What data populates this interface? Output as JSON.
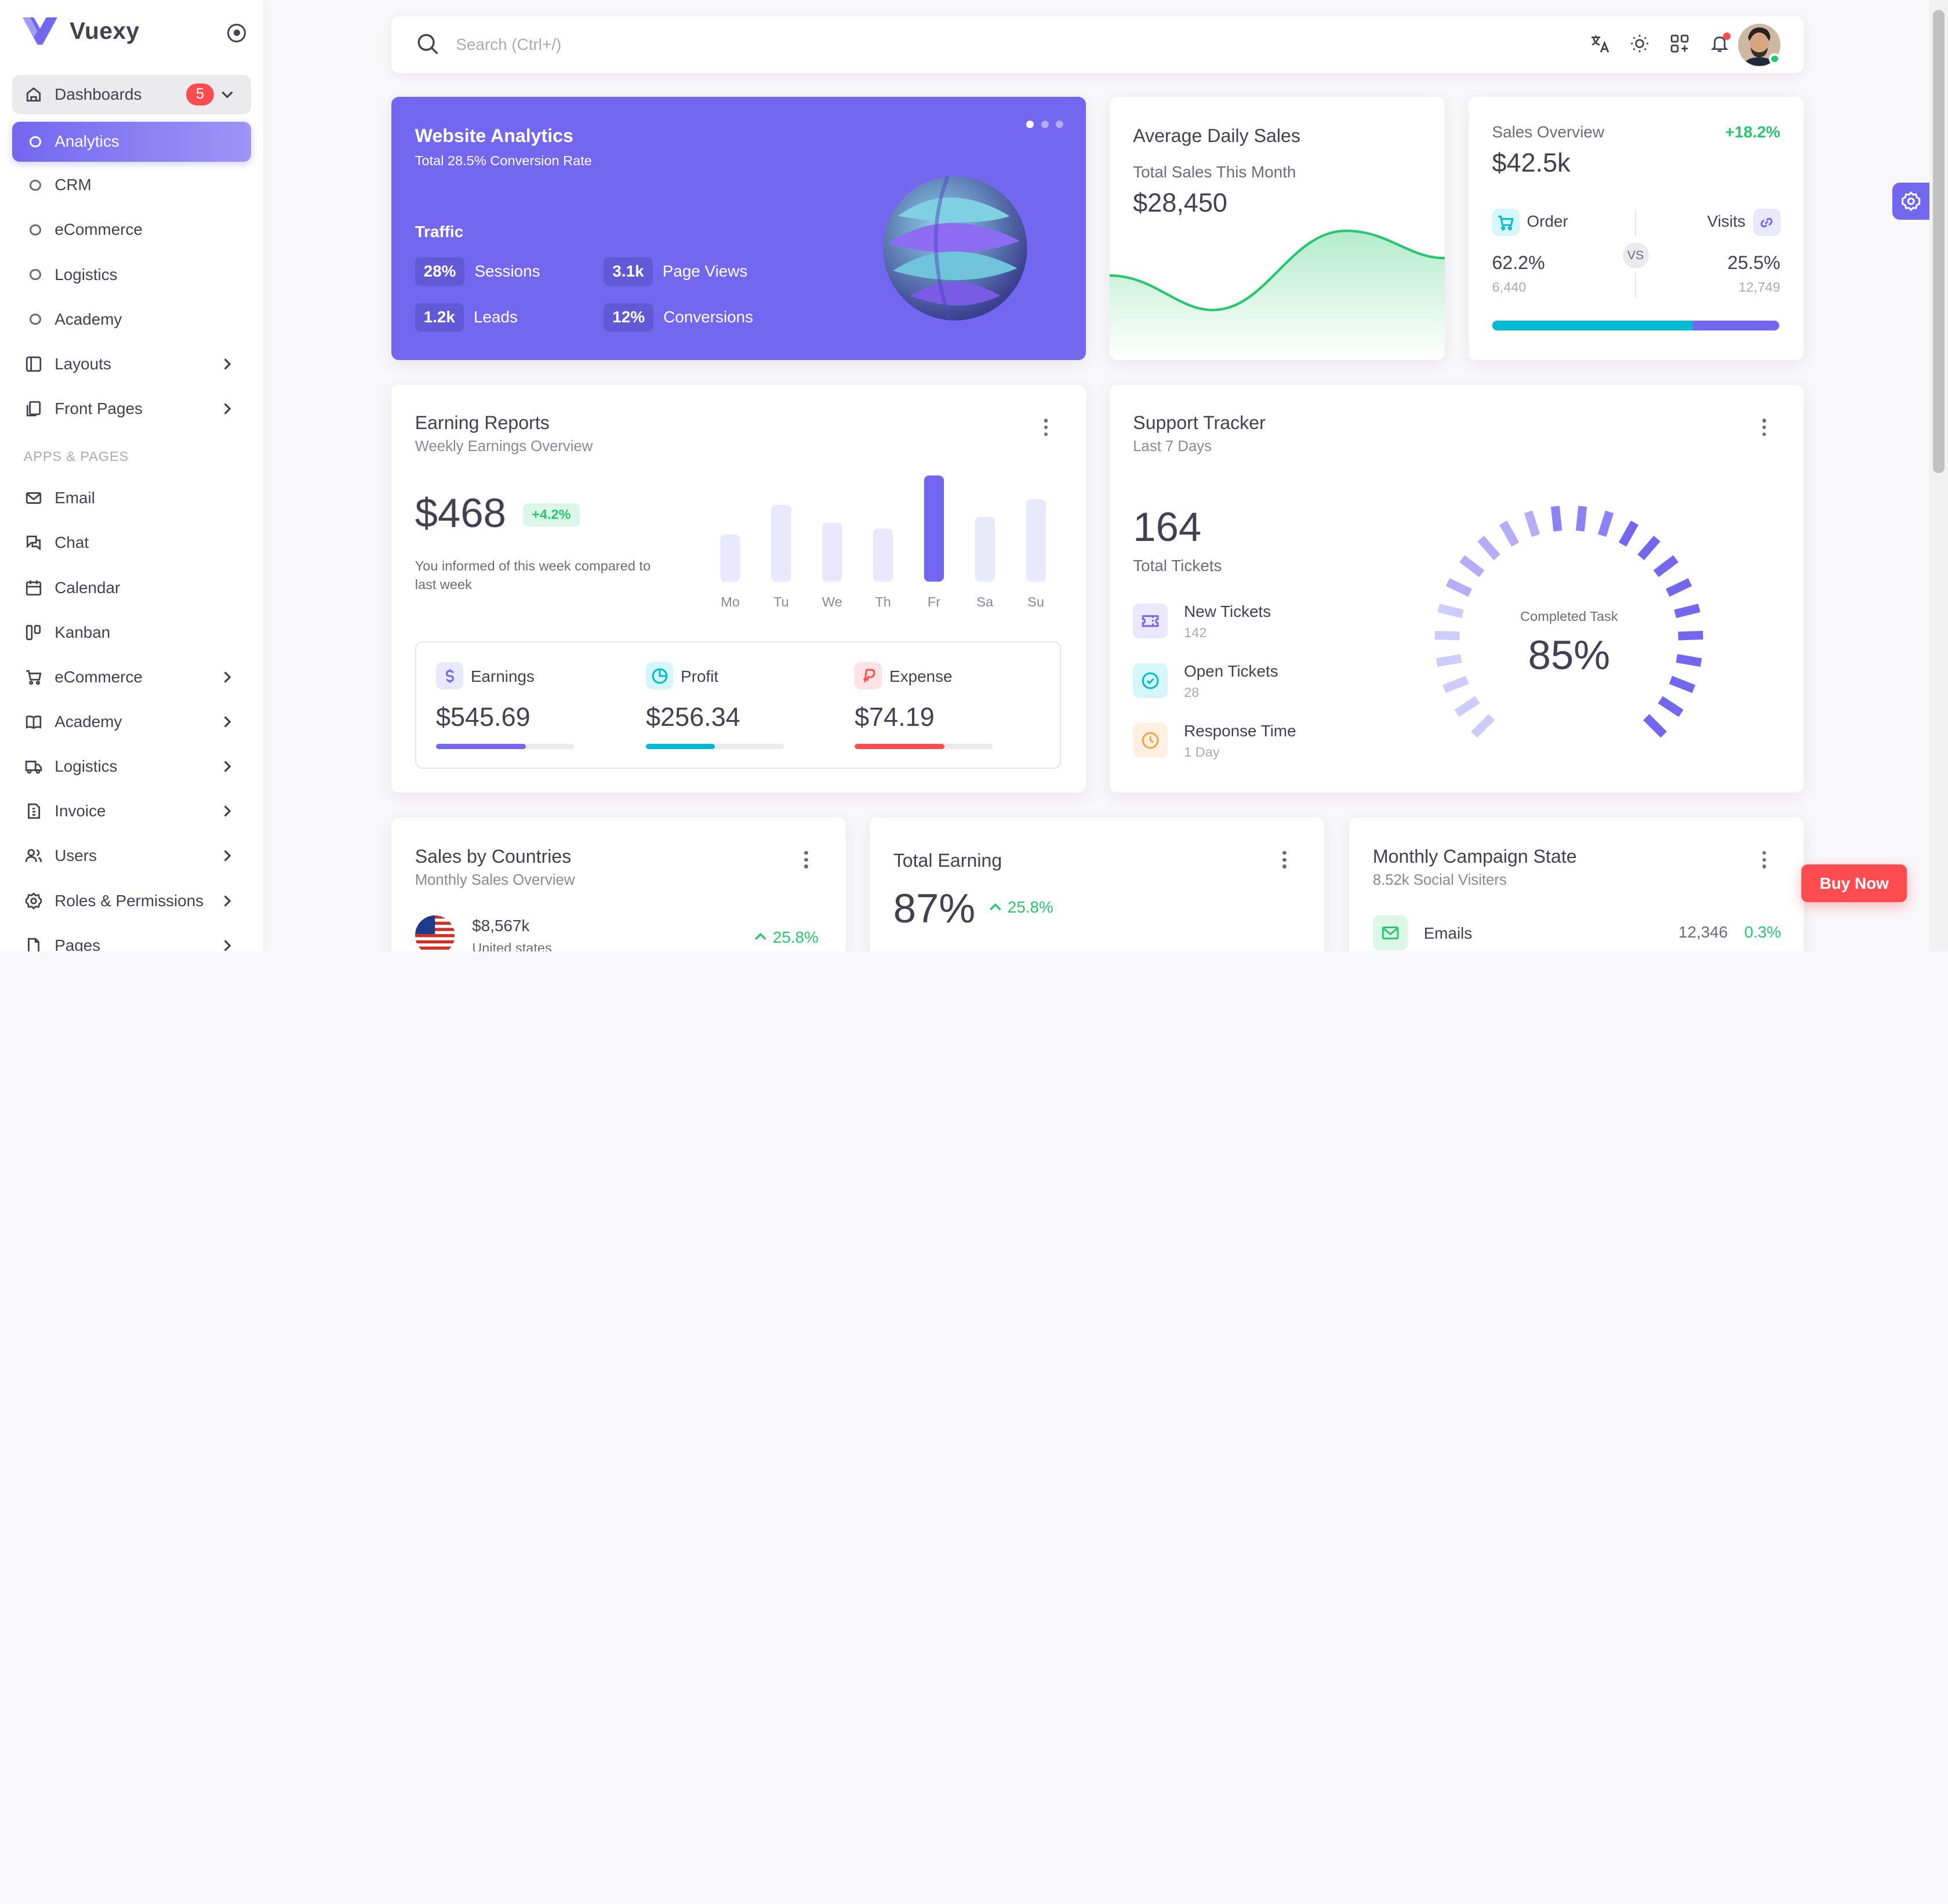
{
  "brand": {
    "name": "Vuexy"
  },
  "sidebar": {
    "dashboards": {
      "label": "Dashboards",
      "badge": "5"
    },
    "sub_items": [
      "Analytics",
      "CRM",
      "eCommerce",
      "Logistics",
      "Academy"
    ],
    "items_top": [
      "Layouts",
      "Front Pages"
    ],
    "section_label": "APPS & PAGES",
    "apps": [
      "Email",
      "Chat",
      "Calendar",
      "Kanban",
      "eCommerce",
      "Academy",
      "Logistics",
      "Invoice",
      "Users",
      "Roles & Permissions",
      "Pages"
    ]
  },
  "search": {
    "placeholder": "Search (Ctrl+/)"
  },
  "website_analytics": {
    "title": "Website Analytics",
    "subtitle": "Total 28.5% Conversion Rate",
    "traffic_label": "Traffic",
    "stats": [
      {
        "value": "28%",
        "label": "Sessions"
      },
      {
        "value": "3.1k",
        "label": "Page Views"
      },
      {
        "value": "1.2k",
        "label": "Leads"
      },
      {
        "value": "12%",
        "label": "Conversions"
      }
    ]
  },
  "avg_daily_sales": {
    "title": "Average Daily Sales",
    "subtitle": "Total Sales This Month",
    "value": "$28,450"
  },
  "sales_overview": {
    "title": "Sales Overview",
    "change": "+18.2%",
    "value": "$42.5k",
    "order": {
      "label": "Order",
      "percent": "62.2%",
      "count": "6,440"
    },
    "visits": {
      "label": "Visits",
      "percent": "25.5%",
      "count": "12,749"
    },
    "vs": "VS",
    "order_share": 0.7
  },
  "earning_reports": {
    "title": "Earning Reports",
    "subtitle": "Weekly Earnings Overview",
    "value": "$468",
    "change": "+4.2%",
    "note": "You informed of this week compared to last week",
    "items": [
      {
        "label": "Earnings",
        "value": "$545.69",
        "progress": 0.65,
        "color": "#7367f0"
      },
      {
        "label": "Profit",
        "value": "$256.34",
        "progress": 0.5,
        "color": "#00bad1"
      },
      {
        "label": "Expense",
        "value": "$74.19",
        "progress": 0.65,
        "color": "#ff4c51"
      }
    ]
  },
  "chart_data": {
    "type": "bar",
    "categories": [
      "Mo",
      "Tu",
      "We",
      "Th",
      "Fr",
      "Sa",
      "Su"
    ],
    "values": [
      40,
      65,
      50,
      45,
      90,
      55,
      70
    ],
    "highlight": "Fr",
    "colors": {
      "highlight": "#7367f0",
      "base": "#eae8fd"
    }
  },
  "support_tracker": {
    "title": "Support Tracker",
    "subtitle": "Last 7 Days",
    "total": "164",
    "total_label": "Total Tickets",
    "items": [
      {
        "label": "New Tickets",
        "value": "142",
        "icon": "ticket-icon"
      },
      {
        "label": "Open Tickets",
        "value": "28",
        "icon": "circle-check-icon"
      },
      {
        "label": "Response Time",
        "value": "1 Day",
        "icon": "clock-icon"
      }
    ],
    "gauge_label": "Completed Task",
    "gauge_value": "85%"
  },
  "sales_by_countries": {
    "title": "Sales by Countries",
    "subtitle": "Monthly Sales Overview",
    "first": {
      "amount": "$8,567k",
      "country": "United states",
      "change": "25.8%"
    }
  },
  "total_earning": {
    "title": "Total Earning",
    "value": "87%",
    "change": "25.8%"
  },
  "campaign": {
    "title": "Monthly Campaign State",
    "subtitle": "8.52k Social Visiters",
    "first": {
      "label": "Emails",
      "count": "12,346",
      "change": "0.3%"
    }
  },
  "buy_now": "Buy Now"
}
